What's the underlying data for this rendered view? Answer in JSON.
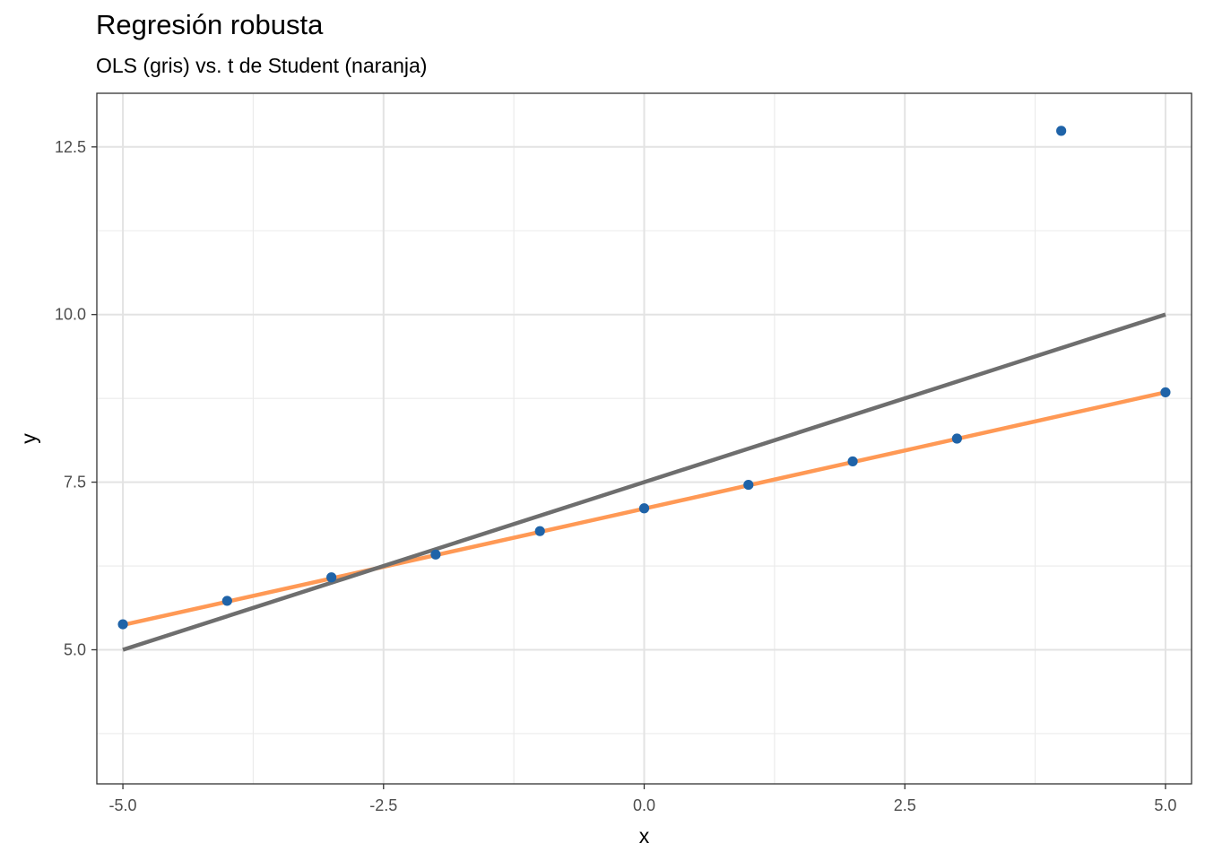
{
  "chart_data": {
    "type": "scatter",
    "title": "Regresión robusta",
    "subtitle": "OLS (gris) vs. t de Student (naranja)",
    "xlabel": "x",
    "ylabel": "y",
    "xlim": [
      -5.25,
      5.25
    ],
    "ylim": [
      3.0,
      13.3
    ],
    "x_ticks": [
      -5.0,
      -2.5,
      0.0,
      2.5,
      5.0
    ],
    "x_tick_labels": [
      "-5.0",
      "-2.5",
      "0.0",
      "2.5",
      "5.0"
    ],
    "y_ticks": [
      5.0,
      7.5,
      10.0,
      12.5
    ],
    "y_tick_labels": [
      "5.0",
      "7.5",
      "10.0",
      "12.5"
    ],
    "x_minor": [
      -3.75,
      -1.25,
      1.25,
      3.75
    ],
    "y_minor": [
      3.75,
      6.25,
      8.75,
      11.25
    ],
    "grid": true,
    "points": {
      "color": "#1f63a8",
      "x": [
        -5,
        -4,
        -3,
        -2,
        -1,
        0,
        1,
        2,
        3,
        4,
        5
      ],
      "y": [
        5.38,
        5.73,
        6.08,
        6.42,
        6.77,
        7.11,
        7.46,
        7.81,
        8.15,
        12.74,
        8.84
      ]
    },
    "series": [
      {
        "color": "#ff9955",
        "x": [
          -5,
          5
        ],
        "y": [
          5.37,
          8.84
        ]
      },
      {
        "color": "#6e6e6e",
        "x": [
          -5,
          5
        ],
        "y": [
          5.0,
          10.0
        ]
      }
    ]
  }
}
